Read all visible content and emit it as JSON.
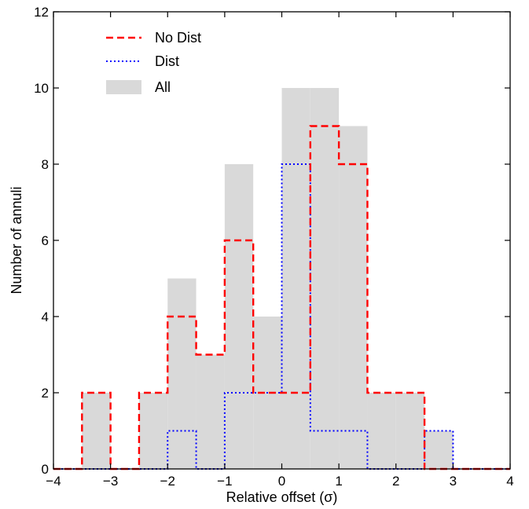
{
  "chart_data": {
    "type": "histogram",
    "xlabel": "Relative offset (σ)",
    "ylabel": "Number of annuli",
    "xlim": [
      -4,
      4
    ],
    "ylim": [
      0,
      12
    ],
    "xticks": [
      -4,
      -3,
      -2,
      -1,
      0,
      1,
      2,
      3,
      4
    ],
    "yticks": [
      0,
      2,
      4,
      6,
      8,
      10,
      12
    ],
    "xtick_labels": [
      "−4",
      "−3",
      "−2",
      "−1",
      "0",
      "1",
      "2",
      "3",
      "4"
    ],
    "ytick_labels": [
      "0",
      "2",
      "4",
      "6",
      "8",
      "10",
      "12"
    ],
    "bin_edges": [
      -4.0,
      -3.5,
      -3.0,
      -2.5,
      -2.0,
      -1.5,
      -1.0,
      -0.5,
      0.0,
      0.5,
      1.0,
      1.5,
      2.0,
      2.5,
      3.0,
      3.5,
      4.0
    ],
    "legend_position": "upper-left",
    "grid": false,
    "series": [
      {
        "name": "No Dist",
        "style": "dashed-step",
        "color": "#ff0000",
        "values": [
          0,
          2,
          0,
          2,
          4,
          3,
          6,
          2,
          2,
          9,
          8,
          2,
          2,
          0,
          0,
          0
        ]
      },
      {
        "name": "Dist",
        "style": "dotted-step",
        "color": "#0000ff",
        "values": [
          0,
          0,
          0,
          0,
          1,
          0,
          2,
          2,
          8,
          1,
          1,
          0,
          0,
          1,
          0,
          0
        ]
      },
      {
        "name": "All",
        "style": "filled-bars",
        "color": "#d9d9d9",
        "values": [
          0,
          2,
          0,
          2,
          5,
          3,
          8,
          4,
          10,
          10,
          9,
          2,
          2,
          1,
          0,
          0
        ]
      }
    ]
  }
}
